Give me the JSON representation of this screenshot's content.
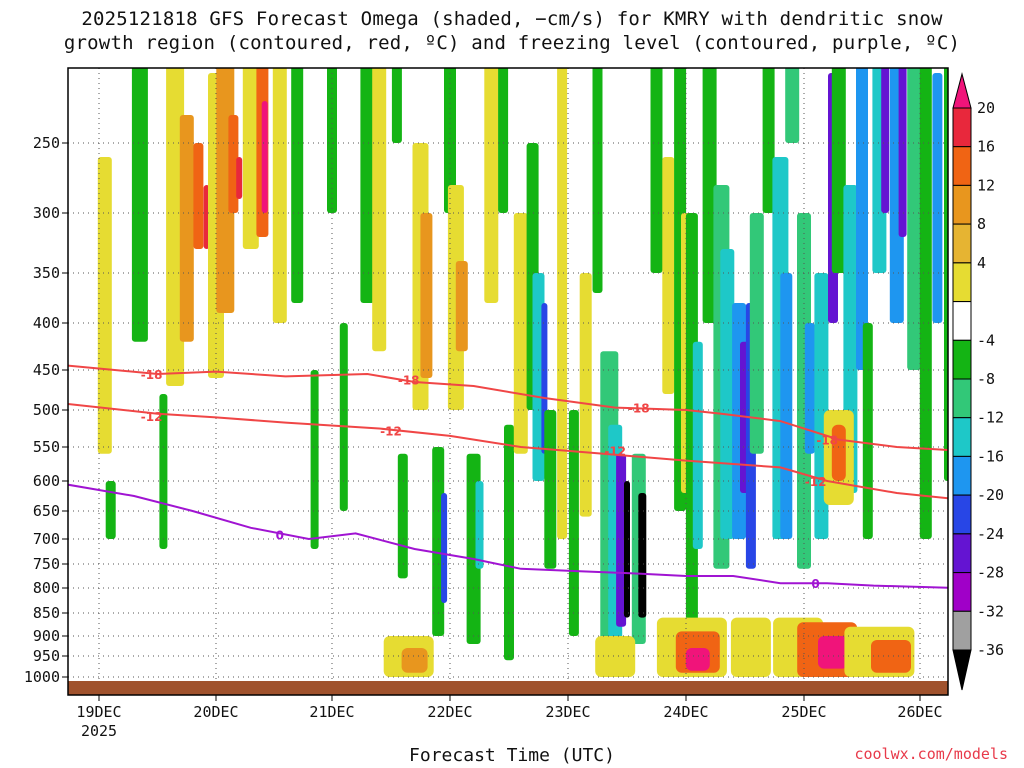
{
  "chart_data": {
    "type": "heatmap",
    "title": "2025121818 GFS Forecast Omega (shaded, −cm/s) for KMRY with dendritic snow",
    "subtitle": "growth region (contoured, red, ºC) and freezing level (contoured, purple, ºC)",
    "xlabel": "Forecast Time (UTC)",
    "ylabel": "",
    "x_ticks": [
      "19DEC",
      "20DEC",
      "21DEC",
      "22DEC",
      "23DEC",
      "24DEC",
      "25DEC",
      "26DEC"
    ],
    "x_year": "2025",
    "y_ticks": [
      250,
      300,
      350,
      400,
      450,
      500,
      550,
      600,
      650,
      700,
      750,
      800,
      850,
      900,
      950,
      1000
    ],
    "colorbar_ticks": [
      20,
      16,
      12,
      8,
      4,
      -4,
      -8,
      -12,
      -16,
      -20,
      -24,
      -28,
      -32,
      -36
    ],
    "colorbar_colors": [
      "#f0147a",
      "#e8283c",
      "#f06414",
      "#e8961e",
      "#e6b432",
      "#e6dc32",
      "#ffffff",
      "#14b414",
      "#32c878",
      "#1ec8c8",
      "#1e96f0",
      "#2846e6",
      "#6414d2",
      "#a000c8",
      "#a0a0a0",
      "#000000"
    ],
    "contours": {
      "isotherm_minus18": {
        "label": "-18",
        "color": "#f04646"
      },
      "isotherm_minus12": {
        "label": "-12",
        "color": "#f04646"
      },
      "freezing_level": {
        "label": "0",
        "color": "#a014d2"
      }
    },
    "ground_color": "#a0522d"
  },
  "credit": "coolwx.com/models"
}
